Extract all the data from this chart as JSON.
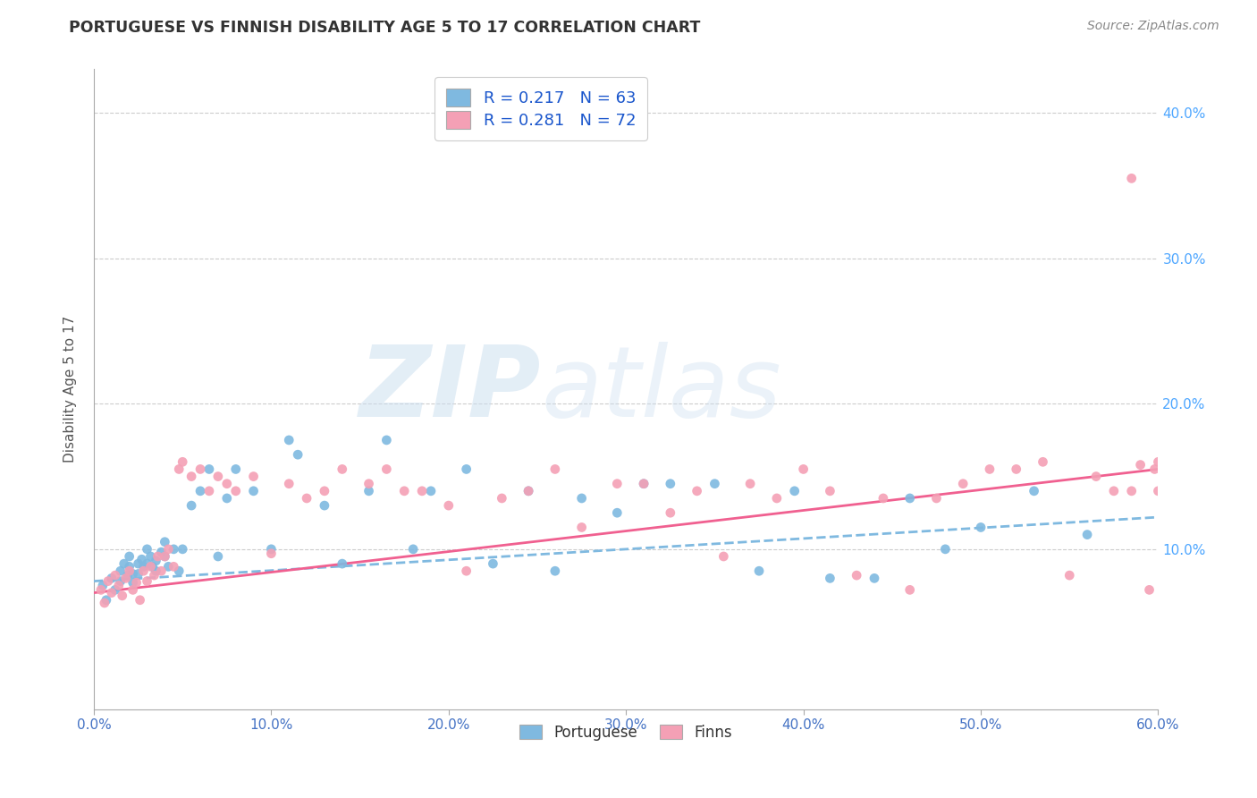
{
  "title": "PORTUGUESE VS FINNISH DISABILITY AGE 5 TO 17 CORRELATION CHART",
  "source": "Source: ZipAtlas.com",
  "ylabel": "Disability Age 5 to 17",
  "xlim": [
    0.0,
    0.6
  ],
  "ylim": [
    -0.01,
    0.43
  ],
  "xticks": [
    0.0,
    0.1,
    0.2,
    0.3,
    0.4,
    0.5,
    0.6
  ],
  "yticks": [
    0.1,
    0.2,
    0.3,
    0.4
  ],
  "ytick_labels": [
    "10.0%",
    "20.0%",
    "30.0%",
    "40.0%"
  ],
  "xtick_labels": [
    "0.0%",
    "10.0%",
    "20.0%",
    "30.0%",
    "40.0%",
    "50.0%",
    "60.0%"
  ],
  "blue_color": "#7fb9e0",
  "pink_color": "#f4a0b5",
  "blue_line_color": "#7fb9e0",
  "pink_line_color": "#f06090",
  "title_color": "#333333",
  "axis_label_color": "#555555",
  "tick_color": "#4472c4",
  "right_tick_color": "#4da6ff",
  "legend_text_color": "#1a56cc",
  "R_blue": 0.217,
  "N_blue": 63,
  "R_pink": 0.281,
  "N_pink": 72,
  "blue_scatter_x": [
    0.005,
    0.007,
    0.01,
    0.012,
    0.015,
    0.015,
    0.017,
    0.019,
    0.02,
    0.02,
    0.022,
    0.022,
    0.025,
    0.025,
    0.027,
    0.028,
    0.03,
    0.03,
    0.032,
    0.033,
    0.035,
    0.035,
    0.038,
    0.04,
    0.04,
    0.042,
    0.045,
    0.048,
    0.05,
    0.055,
    0.06,
    0.065,
    0.07,
    0.075,
    0.08,
    0.09,
    0.1,
    0.11,
    0.115,
    0.13,
    0.14,
    0.155,
    0.165,
    0.18,
    0.19,
    0.21,
    0.225,
    0.245,
    0.26,
    0.275,
    0.295,
    0.31,
    0.325,
    0.35,
    0.375,
    0.395,
    0.415,
    0.44,
    0.46,
    0.48,
    0.5,
    0.53,
    0.56
  ],
  "blue_scatter_y": [
    0.075,
    0.065,
    0.08,
    0.072,
    0.085,
    0.078,
    0.09,
    0.082,
    0.088,
    0.095,
    0.083,
    0.077,
    0.09,
    0.083,
    0.093,
    0.088,
    0.09,
    0.1,
    0.095,
    0.088,
    0.092,
    0.085,
    0.098,
    0.095,
    0.105,
    0.088,
    0.1,
    0.085,
    0.1,
    0.13,
    0.14,
    0.155,
    0.095,
    0.135,
    0.155,
    0.14,
    0.1,
    0.175,
    0.165,
    0.13,
    0.09,
    0.14,
    0.175,
    0.1,
    0.14,
    0.155,
    0.09,
    0.14,
    0.085,
    0.135,
    0.125,
    0.145,
    0.145,
    0.145,
    0.085,
    0.14,
    0.08,
    0.08,
    0.135,
    0.1,
    0.115,
    0.14,
    0.11
  ],
  "pink_scatter_x": [
    0.004,
    0.006,
    0.008,
    0.01,
    0.012,
    0.014,
    0.016,
    0.018,
    0.02,
    0.022,
    0.024,
    0.026,
    0.028,
    0.03,
    0.032,
    0.034,
    0.036,
    0.038,
    0.04,
    0.042,
    0.045,
    0.048,
    0.05,
    0.055,
    0.06,
    0.065,
    0.07,
    0.075,
    0.08,
    0.09,
    0.1,
    0.11,
    0.12,
    0.13,
    0.14,
    0.155,
    0.165,
    0.175,
    0.185,
    0.2,
    0.21,
    0.23,
    0.245,
    0.26,
    0.275,
    0.295,
    0.31,
    0.325,
    0.34,
    0.355,
    0.37,
    0.385,
    0.4,
    0.415,
    0.43,
    0.445,
    0.46,
    0.475,
    0.49,
    0.505,
    0.52,
    0.535,
    0.55,
    0.565,
    0.575,
    0.585,
    0.59,
    0.595,
    0.598,
    0.6,
    0.6,
    0.585
  ],
  "pink_scatter_y": [
    0.072,
    0.063,
    0.078,
    0.07,
    0.082,
    0.075,
    0.068,
    0.08,
    0.085,
    0.072,
    0.077,
    0.065,
    0.085,
    0.078,
    0.088,
    0.082,
    0.095,
    0.085,
    0.095,
    0.1,
    0.088,
    0.155,
    0.16,
    0.15,
    0.155,
    0.14,
    0.15,
    0.145,
    0.14,
    0.15,
    0.097,
    0.145,
    0.135,
    0.14,
    0.155,
    0.145,
    0.155,
    0.14,
    0.14,
    0.13,
    0.085,
    0.135,
    0.14,
    0.155,
    0.115,
    0.145,
    0.145,
    0.125,
    0.14,
    0.095,
    0.145,
    0.135,
    0.155,
    0.14,
    0.082,
    0.135,
    0.072,
    0.135,
    0.145,
    0.155,
    0.155,
    0.16,
    0.082,
    0.15,
    0.14,
    0.14,
    0.158,
    0.072,
    0.155,
    0.14,
    0.16,
    0.355
  ],
  "background_color": "#ffffff",
  "grid_color": "#cccccc"
}
